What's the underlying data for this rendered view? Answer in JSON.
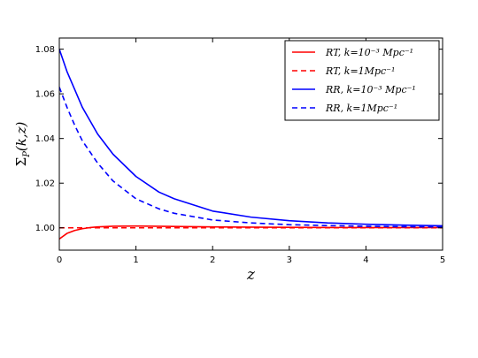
{
  "chart_data": {
    "type": "line",
    "xlabel": "z",
    "ylabel": "Σ_P(k,z)",
    "xlim": [
      0,
      5
    ],
    "ylim": [
      0.99,
      1.085
    ],
    "xticks": [
      "0",
      "1",
      "2",
      "3",
      "4",
      "5"
    ],
    "yticks": [
      "1.00",
      "1.02",
      "1.04",
      "1.06",
      "1.08"
    ],
    "grid": false,
    "legend_position": "top-right",
    "series": [
      {
        "name": "RT, k=10⁻³ Mpc⁻¹",
        "color": "#ff0000",
        "dash": "solid",
        "x": [
          0,
          0.1,
          0.2,
          0.3,
          0.4,
          0.5,
          0.7,
          1.0,
          1.5,
          2.0,
          3.0,
          4.0,
          5.0
        ],
        "y": [
          0.995,
          0.9975,
          0.9988,
          0.9996,
          1.0001,
          1.0004,
          1.0007,
          1.0008,
          1.0006,
          1.0004,
          1.0002,
          1.0001,
          1.0001
        ]
      },
      {
        "name": "RT, k=1Mpc⁻¹",
        "color": "#ff0000",
        "dash": "dashed",
        "x": [
          0,
          1,
          2,
          3,
          4,
          5
        ],
        "y": [
          1.0,
          1.0,
          1.0,
          1.0,
          1.0,
          1.0
        ]
      },
      {
        "name": "RR, k=10⁻³ Mpc⁻¹",
        "color": "#0000ff",
        "dash": "solid",
        "x": [
          0,
          0.1,
          0.2,
          0.3,
          0.5,
          0.7,
          1.0,
          1.3,
          1.5,
          2.0,
          2.5,
          3.0,
          3.5,
          4.0,
          4.5,
          5.0
        ],
        "y": [
          1.08,
          1.07,
          1.062,
          1.054,
          1.042,
          1.033,
          1.023,
          1.016,
          1.013,
          1.0075,
          1.0048,
          1.0032,
          1.0022,
          1.0016,
          1.0012,
          1.0009
        ]
      },
      {
        "name": "RR, k=1Mpc⁻¹",
        "color": "#0000ff",
        "dash": "dashed",
        "x": [
          0,
          0.1,
          0.2,
          0.3,
          0.5,
          0.7,
          1.0,
          1.3,
          1.5,
          2.0,
          2.5,
          3.0,
          3.5,
          4.0,
          4.5,
          5.0
        ],
        "y": [
          1.063,
          1.054,
          1.046,
          1.039,
          1.029,
          1.021,
          1.013,
          1.0085,
          1.0065,
          1.0035,
          1.0022,
          1.0014,
          1.001,
          1.0007,
          1.0005,
          1.0004
        ]
      }
    ]
  }
}
